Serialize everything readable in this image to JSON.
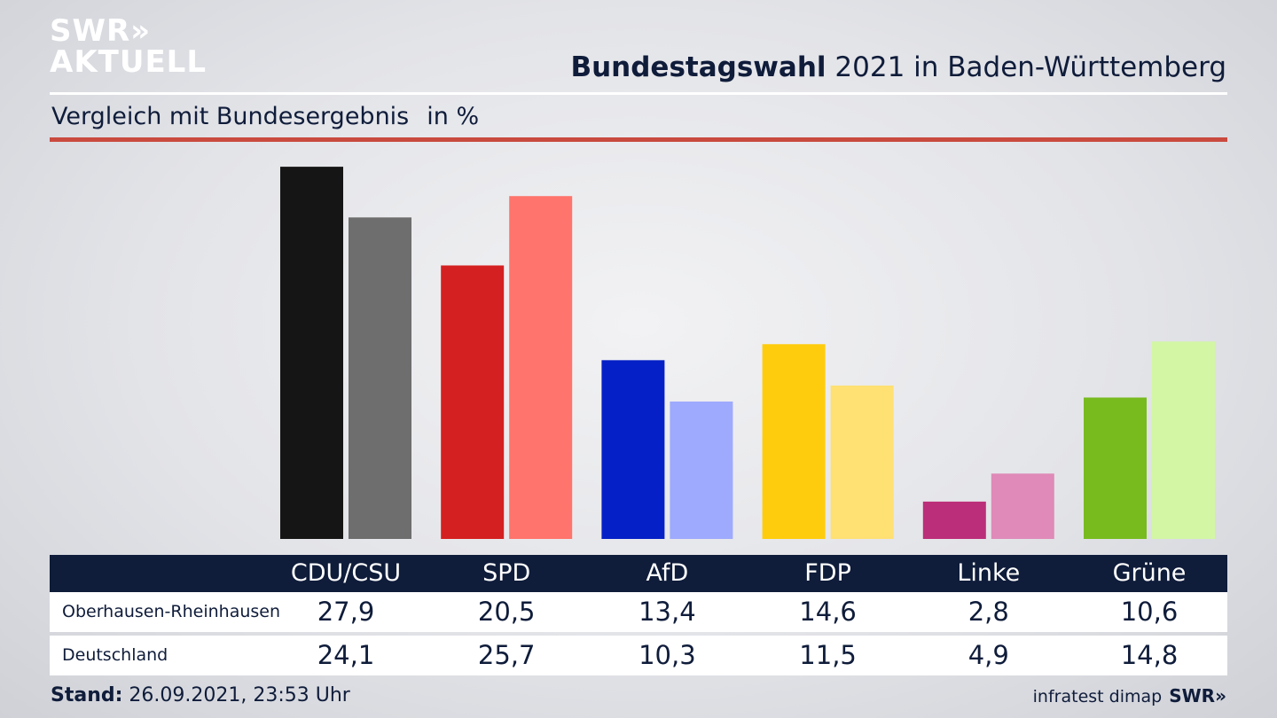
{
  "logo": {
    "line1": "SWR»",
    "line2": "AKTUELL"
  },
  "header": {
    "title_bold": "Bundestagswahl",
    "title_rest": " 2021 in Baden-Württemberg",
    "subtitle": "Vergleich mit Bundesergebnis",
    "unit": "in %"
  },
  "chart_data": {
    "type": "bar",
    "title": "Bundestagswahl 2021 in Baden-Württemberg",
    "subtitle": "Vergleich mit Bundesergebnis",
    "categories": [
      "CDU/CSU",
      "SPD",
      "AfD",
      "FDP",
      "Linke",
      "Grüne"
    ],
    "series": [
      {
        "name": "Oberhausen-Rheinhausen",
        "values": [
          27.9,
          20.5,
          13.4,
          14.6,
          2.8,
          10.6
        ],
        "colors": [
          "#151515",
          "#d42020",
          "#0520c6",
          "#fecc0c",
          "#bb2e79",
          "#78bb1f"
        ]
      },
      {
        "name": "Deutschland",
        "values": [
          24.1,
          25.7,
          10.3,
          11.5,
          4.9,
          14.8
        ],
        "colors": [
          "#6e6e6e",
          "#ff746c",
          "#9daafd",
          "#fee073",
          "#df8ab8",
          "#d3f6a5"
        ]
      }
    ],
    "value_labels": [
      [
        "27,9",
        "20,5",
        "13,4",
        "14,6",
        "2,8",
        "10,6"
      ],
      [
        "24,1",
        "25,7",
        "10,3",
        "11,5",
        "4,9",
        "14,8"
      ]
    ],
    "ylim": [
      0,
      28
    ],
    "grid": false,
    "legend": "table-below"
  },
  "footer": {
    "stand_label": "Stand:",
    "stand_value": " 26.09.2021, 23:53 Uhr",
    "source": "infratest dimap",
    "brand": "SWR»"
  }
}
